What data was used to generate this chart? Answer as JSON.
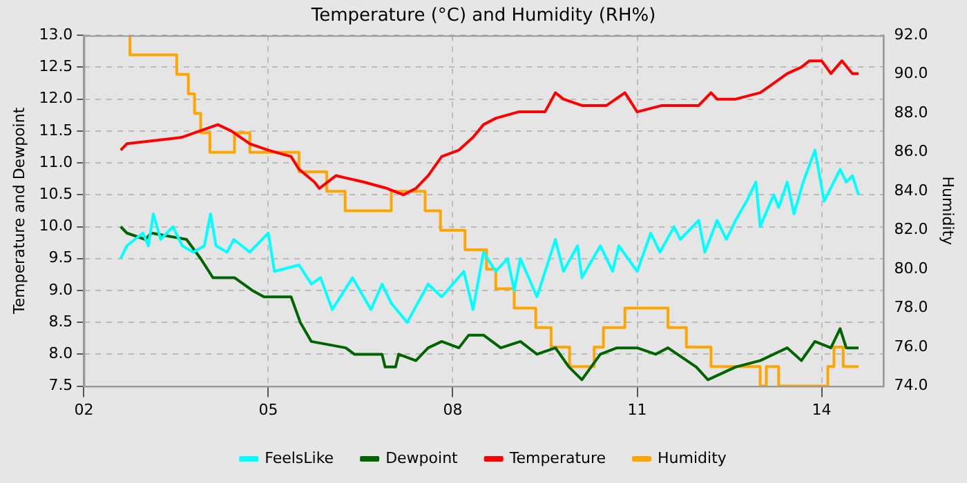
{
  "chart_data": {
    "type": "line",
    "title": "Temperature (°C) and Humidity (RH%)",
    "ylabel": "Temperature and Dewpoint",
    "y2label": "Humidity",
    "xlim": [
      2,
      15
    ],
    "xticks": [
      {
        "value": 2,
        "label": "02"
      },
      {
        "value": 5,
        "label": "05"
      },
      {
        "value": 8,
        "label": "08"
      },
      {
        "value": 11,
        "label": "11"
      },
      {
        "value": 14,
        "label": "14"
      }
    ],
    "ylim": [
      7.5,
      13
    ],
    "yticks": [
      7.5,
      {
        "value": 8,
        "label": "8.0"
      },
      8.5,
      {
        "value": 9,
        "label": "9.0"
      },
      9.5,
      {
        "value": 10,
        "label": "10.0"
      },
      10.5,
      {
        "value": 11,
        "label": "11.0"
      },
      11.5,
      {
        "value": 12,
        "label": "12.0"
      },
      12.5,
      {
        "value": 13,
        "label": "13.0"
      }
    ],
    "y2lim": [
      74,
      92
    ],
    "y2ticks": [
      {
        "value": 74,
        "label": "74.0"
      },
      {
        "value": 76,
        "label": "76.0"
      },
      {
        "value": 78,
        "label": "78.0"
      },
      {
        "value": 80,
        "label": "80.0"
      },
      {
        "value": 82,
        "label": "82.0"
      },
      {
        "value": 84,
        "label": "84.0"
      },
      {
        "value": 86,
        "label": "86.0"
      },
      {
        "value": 88,
        "label": "88.0"
      },
      {
        "value": 90,
        "label": "90.0"
      },
      {
        "value": 92,
        "label": "92.0"
      }
    ],
    "grid": true,
    "legend": "bottom",
    "marker": "none",
    "line_style": "solid",
    "series": [
      {
        "name": "FeelsLike",
        "color": "#00ffff",
        "x": [
          2.6,
          2.7,
          2.96,
          3.05,
          3.13,
          3.25,
          3.45,
          3.6,
          3.78,
          3.96,
          4.06,
          4.15,
          4.33,
          4.44,
          4.7,
          5.0,
          5.1,
          5.5,
          5.7,
          5.85,
          6.04,
          6.37,
          6.67,
          6.85,
          7.0,
          7.26,
          7.6,
          7.82,
          8.18,
          8.33,
          8.5,
          8.7,
          8.89,
          9.0,
          9.1,
          9.37,
          9.67,
          9.8,
          10.03,
          10.1,
          10.4,
          10.6,
          10.7,
          11.0,
          11.22,
          11.37,
          11.6,
          11.7,
          12.0,
          12.1,
          12.3,
          12.45,
          12.6,
          12.78,
          12.93,
          13.0,
          13.22,
          13.3,
          13.44,
          13.55,
          13.7,
          13.89,
          14.04,
          14.3,
          14.4,
          14.5,
          14.6
        ],
        "values": [
          9.5,
          9.7,
          9.9,
          9.7,
          10.2,
          9.8,
          10.0,
          9.7,
          9.6,
          9.7,
          10.2,
          9.7,
          9.6,
          9.8,
          9.6,
          9.9,
          9.3,
          9.4,
          9.1,
          9.2,
          8.7,
          9.2,
          8.7,
          9.1,
          8.8,
          8.5,
          9.1,
          8.9,
          9.3,
          8.7,
          9.6,
          9.3,
          9.5,
          9.0,
          9.5,
          8.9,
          9.8,
          9.3,
          9.7,
          9.2,
          9.7,
          9.3,
          9.7,
          9.3,
          9.9,
          9.6,
          10.0,
          9.8,
          10.1,
          9.6,
          10.1,
          9.8,
          10.1,
          10.4,
          10.7,
          10.0,
          10.5,
          10.3,
          10.7,
          10.2,
          10.7,
          11.2,
          10.4,
          10.9,
          10.7,
          10.8,
          10.5
        ]
      },
      {
        "name": "Dewpoint",
        "color": "#006400",
        "x": [
          2.6,
          2.7,
          3.0,
          3.1,
          3.67,
          3.9,
          4.1,
          4.45,
          4.74,
          4.93,
          5.37,
          5.52,
          5.7,
          6.26,
          6.4,
          6.85,
          6.9,
          7.07,
          7.12,
          7.4,
          7.6,
          7.82,
          8.1,
          8.26,
          8.5,
          8.78,
          9.1,
          9.37,
          9.67,
          9.89,
          10.1,
          10.4,
          10.67,
          11.0,
          11.3,
          11.5,
          11.96,
          12.15,
          12.6,
          13.0,
          13.44,
          13.67,
          13.89,
          14.15,
          14.3,
          14.4,
          14.6
        ],
        "values": [
          10.0,
          9.9,
          9.8,
          9.9,
          9.8,
          9.5,
          9.2,
          9.2,
          9.0,
          8.9,
          8.9,
          8.5,
          8.2,
          8.1,
          8.0,
          8.0,
          7.8,
          7.8,
          8.0,
          7.9,
          8.1,
          8.2,
          8.1,
          8.3,
          8.3,
          8.1,
          8.2,
          8.0,
          8.1,
          7.8,
          7.6,
          8.0,
          8.1,
          8.1,
          8.0,
          8.1,
          7.8,
          7.6,
          7.8,
          7.9,
          8.1,
          7.9,
          8.2,
          8.1,
          8.4,
          8.1,
          8.1
        ]
      },
      {
        "name": "Temperature",
        "color": "#ff0000",
        "x": [
          2.6,
          2.7,
          3.59,
          4.18,
          4.4,
          4.7,
          5.0,
          5.37,
          5.5,
          5.75,
          5.83,
          6.1,
          6.55,
          6.93,
          7.2,
          7.4,
          7.6,
          7.82,
          8.1,
          8.33,
          8.5,
          8.7,
          9.07,
          9.5,
          9.67,
          9.8,
          10.1,
          10.5,
          10.8,
          11.0,
          11.4,
          12.0,
          12.2,
          12.3,
          12.6,
          13.0,
          13.15,
          13.44,
          13.67,
          13.8,
          14.0,
          14.15,
          14.33,
          14.5,
          14.6
        ],
        "values": [
          11.2,
          11.3,
          11.4,
          11.6,
          11.5,
          11.3,
          11.2,
          11.1,
          10.9,
          10.7,
          10.6,
          10.8,
          10.7,
          10.6,
          10.5,
          10.6,
          10.8,
          11.1,
          11.2,
          11.4,
          11.6,
          11.7,
          11.8,
          11.8,
          12.1,
          12.0,
          11.9,
          11.9,
          12.1,
          11.8,
          11.9,
          11.9,
          12.1,
          12.0,
          12.0,
          12.1,
          12.2,
          12.4,
          12.5,
          12.6,
          12.6,
          12.4,
          12.6,
          12.4,
          12.4
        ]
      },
      {
        "name": "Humidity",
        "color": "#ffa500",
        "type": "step",
        "axis": "y2",
        "x": [
          2.72,
          2.75,
          3.51,
          3.7,
          3.8,
          3.9,
          4.05,
          4.45,
          4.7,
          5.5,
          5.95,
          6.25,
          7.0,
          7.55,
          7.8,
          8.2,
          8.55,
          8.7,
          9.0,
          9.35,
          9.6,
          9.9,
          10.3,
          10.45,
          10.8,
          11.5,
          11.8,
          12.2,
          13.0,
          13.1,
          13.3,
          14.1,
          14.2,
          14.35,
          14.6
        ],
        "values": [
          92,
          91,
          90,
          89,
          88,
          87,
          86,
          87,
          86,
          85,
          84,
          83,
          84,
          83,
          82,
          81,
          80,
          79,
          78,
          77,
          76,
          75,
          76,
          77,
          78,
          77,
          76,
          75,
          74,
          75,
          74,
          75,
          76,
          75,
          75
        ]
      }
    ]
  }
}
